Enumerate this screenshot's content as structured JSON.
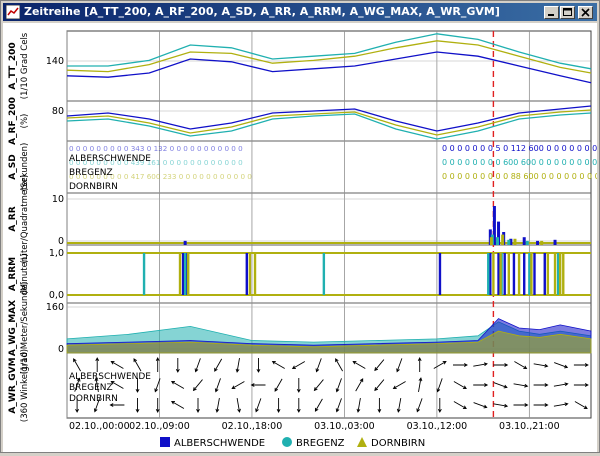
{
  "window": {
    "title": "Zeitreihe [A_TT_200, A_RF_200, A_SD, A_RR, A_RRM, A_WG_MAX, A_WR_GVM]"
  },
  "colors": {
    "alberschwende": "#1010c8",
    "bregenz": "#20b0b0",
    "dornbirn": "#b0b010",
    "event": "#e02020",
    "grid": "#909090"
  },
  "legend": [
    {
      "name": "ALBERSCHWENDE",
      "marker": "square"
    },
    {
      "name": "BREGENZ",
      "marker": "circle"
    },
    {
      "name": "DORNBIRN",
      "marker": "triangle"
    }
  ],
  "chart_data": {
    "type": "line",
    "title": "Zeitreihe [A_TT_200, A_RF_200, A_SD, A_RR, A_RRM, A_WG_MAX, A_WR_GVM]",
    "x_ticks": [
      "02.10.,00:00",
      "02.10.,09:00",
      "02.10.,18:00",
      "03.10.,03:00",
      "03.10.,12:00",
      "03.10.,21:00"
    ],
    "x_range_hours": [
      0,
      51
    ],
    "event_marker_hour": 41.5,
    "grid": true,
    "legend_position": "bottom",
    "panels": [
      {
        "id": "tt",
        "ylabel": "A_TT_200",
        "ylabel2": "(1/10 Grad Cels",
        "yticks": [
          "140"
        ],
        "series": [
          {
            "name": "ALBERSCHWENDE",
            "x": [
              0,
              4,
              8,
              12,
              16,
              20,
              24,
              28,
              32,
              36,
              40,
              44,
              48,
              51
            ],
            "y": [
              138,
              137,
              140,
              150,
              148,
              141,
              143,
              145,
              150,
              155,
              152,
              145,
              138,
              133
            ]
          },
          {
            "name": "BREGENZ",
            "x": [
              0,
              4,
              8,
              12,
              16,
              20,
              24,
              28,
              32,
              36,
              40,
              44,
              48,
              51
            ],
            "y": [
              145,
              145,
              149,
              160,
              158,
              150,
              152,
              154,
              162,
              168,
              164,
              155,
              147,
              143
            ]
          },
          {
            "name": "DORNBIRN",
            "x": [
              0,
              4,
              8,
              12,
              16,
              20,
              24,
              28,
              32,
              36,
              40,
              44,
              48,
              51
            ],
            "y": [
              142,
              141,
              146,
              155,
              154,
              147,
              149,
              152,
              158,
              163,
              160,
              152,
              144,
              140
            ]
          }
        ]
      },
      {
        "id": "rf",
        "ylabel": "A_RF_200",
        "ylabel2": "(%)",
        "yticks": [
          "80"
        ],
        "series": [
          {
            "name": "ALBERSCHWENDE",
            "x": [
              0,
              4,
              8,
              12,
              16,
              20,
              24,
              28,
              32,
              36,
              40,
              44,
              48,
              51
            ],
            "y": [
              85,
              88,
              82,
              72,
              78,
              88,
              90,
              92,
              80,
              70,
              78,
              88,
              92,
              95
            ]
          },
          {
            "name": "BREGENZ",
            "x": [
              0,
              4,
              8,
              12,
              16,
              20,
              24,
              28,
              32,
              36,
              40,
              44,
              48,
              51
            ],
            "y": [
              80,
              82,
              75,
              65,
              70,
              82,
              85,
              87,
              72,
              62,
              70,
              82,
              86,
              88
            ]
          },
          {
            "name": "DORNBIRN",
            "x": [
              0,
              4,
              8,
              12,
              16,
              20,
              24,
              28,
              32,
              36,
              40,
              44,
              48,
              51
            ],
            "y": [
              83,
              85,
              78,
              68,
              74,
              85,
              87,
              89,
              76,
              66,
              74,
              85,
              89,
              91
            ]
          }
        ]
      },
      {
        "id": "sd",
        "ylabel": "A_SD",
        "ylabel2": "(Sekunden)",
        "rows": [
          {
            "name": "ALBERSCHWENDE",
            "before": "0 0 0 0 0 0 0 0 0 343 0 132 0 0 0 0 0 0 0 0 0 0 0",
            "after": "0 0 0 0 0 0 0 5 0 112 600 0 0 0 0 0 0 0 0 0 0 0"
          },
          {
            "name": "BREGENZ",
            "before": "0 0 0 0 0 0 0 0 0 439 161 0 0 0 0 0 0 0 0 0 0 0 0",
            "after": "0 0 0 0 0 0 0 0 600 600 0 0 0 0 0 0 0 0 0 0 0 0 0"
          },
          {
            "name": "DORNBIRN",
            "before": "0 0 0 0 0 0 0 0 0 417 600 233 0 0 0 0 0 0 0 0 0 0 0",
            "after": "0 0 0 0 0 0 0 0 0 88 600 0 0 0 0 0 0 0 0 0 0 0 0"
          }
        ]
      },
      {
        "id": "rr",
        "ylabel": "A_RR",
        "ylabel2": "(Liter/Quadratmeter)",
        "yticks": [
          "10",
          "0"
        ],
        "series": [
          {
            "name": "ALBERSCHWENDE",
            "x": [
              11.5,
              41.2,
              41.6,
              42.0,
              42.5,
              43.2,
              44.5,
              45.8,
              47.5
            ],
            "y": [
              0.8,
              3,
              7.5,
              4.5,
              2.5,
              1.2,
              1.5,
              0.8,
              1.0
            ]
          },
          {
            "name": "BREGENZ",
            "x": [
              41.4,
              41.9,
              43.0,
              44.8
            ],
            "y": [
              2,
              1.5,
              1,
              0.8
            ]
          },
          {
            "name": "DORNBIRN",
            "x": [
              41.3,
              42.4,
              43.6,
              46.2
            ],
            "y": [
              1.5,
              2,
              1.2,
              0.8
            ]
          }
        ]
      },
      {
        "id": "rrm",
        "ylabel": "A_RRM",
        "ylabel2": "(Minuten)",
        "yticks": [
          "1,0",
          "0,0"
        ],
        "events": [
          {
            "name": "ALBERSCHWENDE",
            "x": [
              11.3,
              11.7,
              17.5,
              36.3,
              41.2,
              42.0,
              42.6,
              43.5,
              44.5,
              45.5,
              46.5
            ]
          },
          {
            "name": "BREGENZ",
            "x": [
              7.5,
              11.5,
              25.0,
              41.0,
              42.3,
              45.0,
              47.8
            ]
          },
          {
            "name": "DORNBIRN",
            "x": [
              11.0,
              11.8,
              17.8,
              18.3,
              41.5,
              42.2,
              43.0,
              44.0,
              45.2,
              46.8,
              47.5,
              48.0,
              48.3
            ]
          }
        ]
      },
      {
        "id": "wg",
        "ylabel": "A_WG_MAX",
        "ylabel2": "(1/10 Meter/Sekunde)",
        "yticks": [
          "160",
          "0"
        ],
        "series": [
          {
            "name": "ALBERSCHWENDE",
            "x": [
              0,
              6,
              12,
              18,
              24,
              30,
              36,
              40,
              42,
              44,
              46,
              48,
              51
            ],
            "y": [
              30,
              35,
              40,
              30,
              25,
              30,
              35,
              40,
              110,
              80,
              75,
              90,
              70
            ]
          },
          {
            "name": "BREGENZ",
            "x": [
              0,
              6,
              12,
              18,
              24,
              30,
              36,
              40,
              42,
              44,
              46,
              48,
              51
            ],
            "y": [
              45,
              60,
              85,
              40,
              35,
              40,
              45,
              55,
              100,
              70,
              60,
              70,
              55
            ]
          },
          {
            "name": "DORNBIRN",
            "x": [
              0,
              6,
              12,
              18,
              24,
              30,
              36,
              40,
              42,
              44,
              46,
              48,
              51
            ],
            "y": [
              25,
              30,
              35,
              25,
              20,
              25,
              30,
              35,
              70,
              55,
              50,
              60,
              45
            ]
          }
        ]
      },
      {
        "id": "wr",
        "ylabel": "A_WR_GVM",
        "ylabel2": "(360 Winkelgrad)",
        "stations": [
          "ALBERSCHWENDE",
          "BREGENZ",
          "DORNBIRN"
        ],
        "rows": [
          {
            "name": "ALBERSCHWENDE",
            "directions": [
              330,
              0,
              300,
              330,
              0,
              180,
              200,
              210,
              190,
              180,
              300,
              240,
              200,
              330,
              300,
              220,
              200,
              0,
              60,
              90,
              80,
              90,
              120,
              100,
              110,
              90
            ]
          },
          {
            "name": "BREGENZ",
            "directions": [
              20,
              350,
              300,
              180,
              200,
              300,
              220,
              200,
              240,
              270,
              210,
              180,
              220,
              200,
              30,
              220,
              240,
              10,
              200,
              120,
              90,
              110,
              100,
              90,
              80,
              90
            ]
          },
          {
            "name": "DORNBIRN",
            "directions": [
              180,
              200,
              270,
              180,
              180,
              300,
              180,
              190,
              170,
              200,
              180,
              180,
              210,
              200,
              190,
              180,
              190,
              200,
              180,
              120,
              110,
              100,
              90,
              90,
              80,
              120
            ]
          }
        ]
      }
    ]
  }
}
